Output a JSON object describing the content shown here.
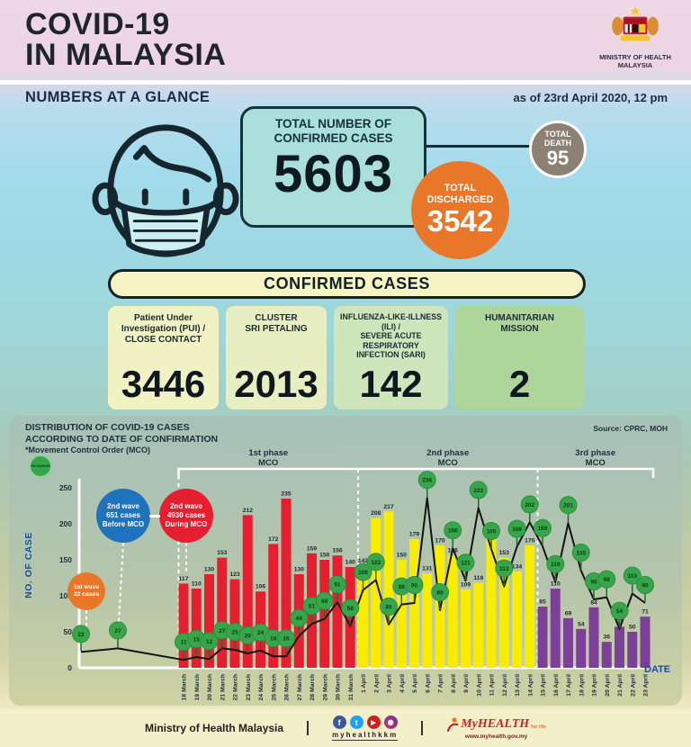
{
  "header": {
    "title": "COVID-19\nIN MALAYSIA",
    "ministry_line1": "MINISTRY OF HEALTH",
    "ministry_line2": "MALAYSIA",
    "section_label": "NUMBERS AT A GLANCE",
    "as_of": "as of 23rd April 2020, 12 pm"
  },
  "totals": {
    "confirmed_label": "TOTAL NUMBER OF\nCONFIRMED CASES",
    "confirmed_value": "5603",
    "discharged_label": "TOTAL\nDISCHARGED",
    "discharged_value": "3542",
    "death_label": "TOTAL\nDEATH",
    "death_value": "95"
  },
  "confirmed_section": {
    "title": "CONFIRMED CASES",
    "boxes": [
      {
        "label": "Patient Under Investigation (PUI) /\nCLOSE CONTACT",
        "value": "3446",
        "bg": "#f1f2c4"
      },
      {
        "label": "CLUSTER\nSRI PETALING",
        "value": "2013",
        "bg": "#e7efc2"
      },
      {
        "label": "INFLUENZA-LIKE-ILLNESS (ILI) /\nSEVERE ACUTE\nRESPIRATORY\nINFECTION (SARI)",
        "value": "142",
        "bg": "#cfe5bb"
      },
      {
        "label": "HUMANITARIAN\nMISSION",
        "value": "2",
        "bg": "#aed69c"
      }
    ]
  },
  "chart_data": {
    "type": "bar",
    "title": "DISTRIBUTION OF COVID-19 CASES\nACCORDING TO DATE OF CONFIRMATION",
    "subtitle": "*Movement Control Order (MCO)",
    "source": "Source: CPRC, MOH",
    "xlabel": "DATE",
    "ylabel": "NO. OF CASE",
    "ylim": [
      0,
      250
    ],
    "yticks": [
      0,
      50,
      100,
      150,
      200,
      250
    ],
    "legend": [
      {
        "name": "DISCHARGED",
        "color": "#37a64a"
      }
    ],
    "categories": [
      "18 March",
      "19 March",
      "20 March",
      "21 March",
      "22 March",
      "23 March",
      "24 March",
      "25 March",
      "26 March",
      "27 March",
      "28 March",
      "29 March",
      "30 March",
      "31 March",
      "1 April",
      "2 April",
      "3 April",
      "4 April",
      "5 April",
      "6 April",
      "7 April",
      "8 April",
      "9 April",
      "10 April",
      "11 April",
      "12 April",
      "13 April",
      "14 April",
      "15 April",
      "16 April",
      "17 April",
      "18 April",
      "19 April",
      "20 April",
      "21 April",
      "22 April",
      "23 April"
    ],
    "series": [
      {
        "name": "New confirmed cases",
        "type": "bar",
        "values": [
          117,
          110,
          130,
          153,
          123,
          212,
          106,
          172,
          235,
          130,
          159,
          150,
          156,
          140,
          142,
          208,
          217,
          150,
          179,
          131,
          170,
          156,
          109,
          118,
          184,
          153,
          134,
          170,
          85,
          110,
          69,
          54,
          84,
          36,
          57,
          50,
          71
        ]
      },
      {
        "name": "Discharged cases",
        "type": "line",
        "marker": "green-circle",
        "values": [
          11,
          15,
          12,
          27,
          25,
          20,
          24,
          16,
          16,
          44,
          61,
          68,
          91,
          58,
          108,
          122,
          60,
          88,
          90,
          236,
          80,
          166,
          121,
          222,
          165,
          113,
          168,
          202,
          169,
          119,
          201,
          135,
          95,
          98,
          54,
          103,
          90
        ]
      }
    ],
    "pre_mco_points": [
      {
        "label": "22",
        "value": 22
      },
      {
        "label": "27",
        "value": 27
      }
    ],
    "phases": [
      {
        "label": "1st phase",
        "sublabel": "MCO",
        "from_index": 0,
        "to_index": 13,
        "bar_color": "#e51f2f"
      },
      {
        "label": "2nd phase",
        "sublabel": "MCO",
        "from_index": 14,
        "to_index": 27,
        "bar_color": "#f8ec00"
      },
      {
        "label": "3rd phase",
        "sublabel": "MCO",
        "from_index": 28,
        "to_index": 36,
        "bar_color": "#7c4099"
      }
    ],
    "annotations": [
      {
        "text": "1st wave\n22 cases",
        "color": "#e8772a"
      },
      {
        "text": "2nd wave\n651 cases\nBefore MCO",
        "color": "#1f72bc"
      },
      {
        "text": "2nd wave\n4930 cases\nDuring MCO",
        "color": "#e51f2f"
      }
    ]
  },
  "footer": {
    "ministry": "Ministry of Health Malaysia",
    "social_handle": "myhealthkkm",
    "social_icons": [
      "facebook-icon",
      "twitter-icon",
      "youtube-icon",
      "instagram-icon"
    ],
    "myhealth_name": "MyHEALTH",
    "myhealth_tag": "for life",
    "myhealth_url": "www.myhealth.gov.my"
  },
  "colors": {
    "bar_phase1": "#e51f2f",
    "bar_phase2": "#f8ec00",
    "bar_phase3": "#7c4099",
    "marker_green": "#37a64a",
    "accent_orange": "#e8772a",
    "accent_teal": "#abdfdc",
    "death_grey": "#8d8173",
    "axis_blue": "#1b4f9c"
  }
}
